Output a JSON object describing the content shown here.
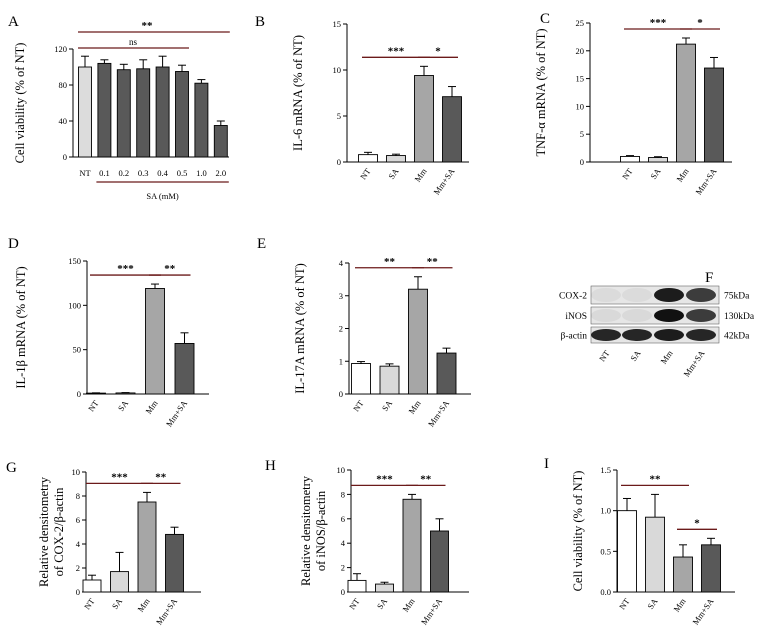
{
  "colors": {
    "NT": "#ffffff",
    "SA": "#d9d9d9",
    "Mm": "#a6a6a6",
    "Mm+SA": "#595959",
    "bar_dark": "#595959",
    "bar_light": "#dcdcdc",
    "sig_line": "#6b1a1a"
  },
  "western_blot": {
    "label": "F",
    "rows": [
      {
        "protein": "COX-2",
        "size": "75kDa"
      },
      {
        "protein": "iNOS",
        "size": "130kDa"
      },
      {
        "protein": "β-actin",
        "size": "42kDa"
      }
    ],
    "lanes": [
      "NT",
      "SA",
      "Mm",
      "Mm+SA"
    ]
  },
  "chart_data": [
    {
      "panel": "A",
      "type": "bar",
      "ylabel": "Cell viability (% of NT)",
      "xlabel": "SA (mM)",
      "categories": [
        "NT",
        "0.1",
        "0.2",
        "0.3",
        "0.4",
        "0.5",
        "1.0",
        "2.0"
      ],
      "values": [
        100,
        104,
        97,
        98,
        100,
        95,
        82,
        35
      ],
      "errors": [
        12,
        4,
        6,
        10,
        12,
        7,
        4,
        5
      ],
      "ylim": [
        0,
        120
      ],
      "yticks": [
        0,
        40,
        80,
        120
      ],
      "significance": [
        {
          "from": 0,
          "to": 7,
          "label": "**"
        },
        {
          "from": 0,
          "to": 5,
          "label": "ns"
        }
      ]
    },
    {
      "panel": "B",
      "type": "bar",
      "ylabel": "IL-6 mRNA (% of NT)",
      "categories": [
        "NT",
        "SA",
        "Mm",
        "Mm+SA"
      ],
      "values": [
        0.8,
        0.7,
        9.4,
        7.1
      ],
      "errors": [
        0.25,
        0.15,
        1.0,
        1.1
      ],
      "ylim": [
        0,
        15
      ],
      "yticks": [
        0,
        5,
        10,
        15
      ],
      "significance": [
        {
          "from": 0,
          "to": 2,
          "label": "***"
        },
        {
          "from": 2,
          "to": 3,
          "label": "*"
        }
      ]
    },
    {
      "panel": "C",
      "type": "bar",
      "ylabel": "TNF-α mRNA (% of NT)",
      "categories": [
        "NT",
        "SA",
        "Mm",
        "Mm+SA"
      ],
      "values": [
        1.0,
        0.8,
        21.2,
        16.9
      ],
      "errors": [
        0.15,
        0.15,
        1.1,
        1.9
      ],
      "ylim": [
        0,
        25
      ],
      "yticks": [
        0,
        5,
        10,
        15,
        20,
        25
      ],
      "significance": [
        {
          "from": 0,
          "to": 2,
          "label": "***"
        },
        {
          "from": 2,
          "to": 3,
          "label": "*"
        }
      ]
    },
    {
      "panel": "D",
      "type": "bar",
      "ylabel": "IL-1β mRNA (% of NT)",
      "categories": [
        "NT",
        "SA",
        "Mm",
        "Mm+SA"
      ],
      "values": [
        1.0,
        1.2,
        119,
        57
      ],
      "errors": [
        0.3,
        0.4,
        5,
        12
      ],
      "ylim": [
        0,
        150
      ],
      "yticks": [
        0,
        50,
        100,
        150
      ],
      "significance": [
        {
          "from": 0,
          "to": 2,
          "label": "***"
        },
        {
          "from": 2,
          "to": 3,
          "label": "**"
        }
      ]
    },
    {
      "panel": "E",
      "type": "bar",
      "ylabel": "IL-17A mRNA (% of NT)",
      "categories": [
        "NT",
        "SA",
        "Mm",
        "Mm+SA"
      ],
      "values": [
        0.93,
        0.85,
        3.2,
        1.25
      ],
      "errors": [
        0.06,
        0.07,
        0.38,
        0.15
      ],
      "ylim": [
        0,
        4
      ],
      "yticks": [
        0,
        1,
        2,
        3,
        4
      ],
      "significance": [
        {
          "from": 0,
          "to": 2,
          "label": "**"
        },
        {
          "from": 2,
          "to": 3,
          "label": "**"
        }
      ]
    },
    {
      "panel": "G",
      "type": "bar",
      "ylabel": "Relative densitometry of COX-2/β-actin",
      "categories": [
        "NT",
        "SA",
        "Mm",
        "Mm+SA"
      ],
      "values": [
        1.0,
        1.7,
        7.5,
        4.8
      ],
      "errors": [
        0.4,
        1.6,
        0.8,
        0.6
      ],
      "ylim": [
        0,
        10
      ],
      "yticks": [
        0,
        2,
        4,
        6,
        8,
        10
      ],
      "significance": [
        {
          "from": 0,
          "to": 2,
          "label": "***"
        },
        {
          "from": 2,
          "to": 3,
          "label": "**"
        }
      ]
    },
    {
      "panel": "H",
      "type": "bar",
      "ylabel": "Relative densitometry of iNOS/β-actin",
      "categories": [
        "NT",
        "SA",
        "Mm",
        "Mm+SA"
      ],
      "values": [
        0.95,
        0.65,
        7.6,
        5.0
      ],
      "errors": [
        0.55,
        0.15,
        0.4,
        1.0
      ],
      "ylim": [
        0,
        10
      ],
      "yticks": [
        0,
        2,
        4,
        6,
        8,
        10
      ],
      "significance": [
        {
          "from": 0,
          "to": 2,
          "label": "***"
        },
        {
          "from": 2,
          "to": 3,
          "label": "**"
        }
      ]
    },
    {
      "panel": "I",
      "type": "bar",
      "ylabel": "Cell viability (% of NT)",
      "categories": [
        "NT",
        "SA",
        "Mm",
        "Mm+SA"
      ],
      "values": [
        1.0,
        0.92,
        0.43,
        0.58
      ],
      "errors": [
        0.15,
        0.28,
        0.15,
        0.08
      ],
      "ylim": [
        0,
        1.5
      ],
      "yticks": [
        "0.0",
        "0.5",
        "1.0",
        "1.5"
      ],
      "significance": [
        {
          "from": 0,
          "to": 2,
          "label": "**"
        },
        {
          "from": 2,
          "to": 3,
          "label": "*"
        }
      ]
    }
  ]
}
